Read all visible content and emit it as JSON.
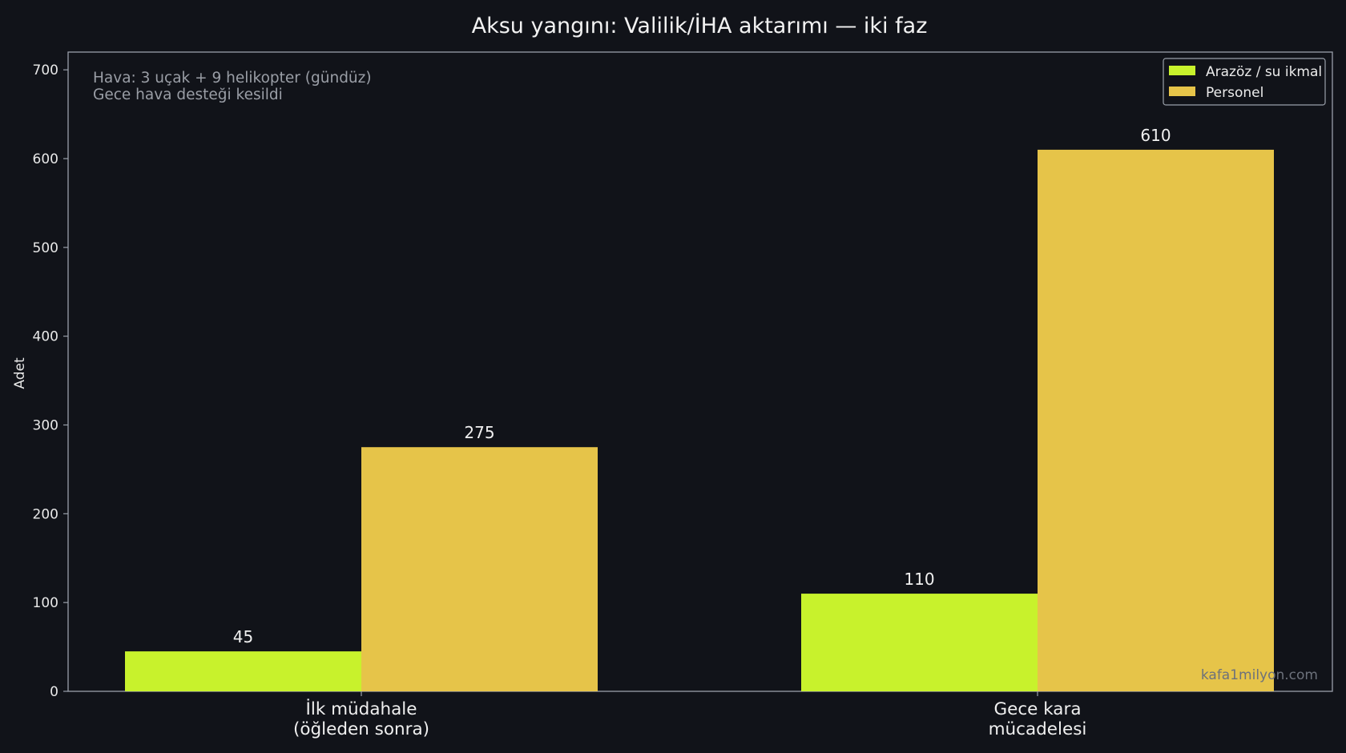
{
  "chart_data": {
    "type": "bar",
    "title": "Aksu yangını: Valilik/İHA aktarımı — iki faz",
    "xlabel": "",
    "ylabel": "Adet",
    "categories": [
      "İlk müdahale\n(öğleden sonra)",
      "Gece kara\nmücadelesi"
    ],
    "series": [
      {
        "name": "Arazöz / su ikmal",
        "values": [
          45,
          110
        ],
        "color": "#c8f22c"
      },
      {
        "name": "Personel",
        "values": [
          275,
          610
        ],
        "color": "#e6c449"
      }
    ],
    "ylim": [
      0,
      720
    ],
    "yticks": [
      0,
      100,
      200,
      300,
      400,
      500,
      600,
      700
    ],
    "grid": false,
    "legend_position": "top-right",
    "annotation_lines": [
      "Hava: 3 uçak + 9 helikopter (gündüz)",
      "Gece hava desteği kesildi"
    ],
    "watermark": "kafa1milyon.com",
    "colors": {
      "background": "#111319",
      "axes_frame": "#9aa0aa",
      "text": "#f0f0f0",
      "annotation": "#9a9ea6",
      "watermark": "#6c717b"
    }
  }
}
